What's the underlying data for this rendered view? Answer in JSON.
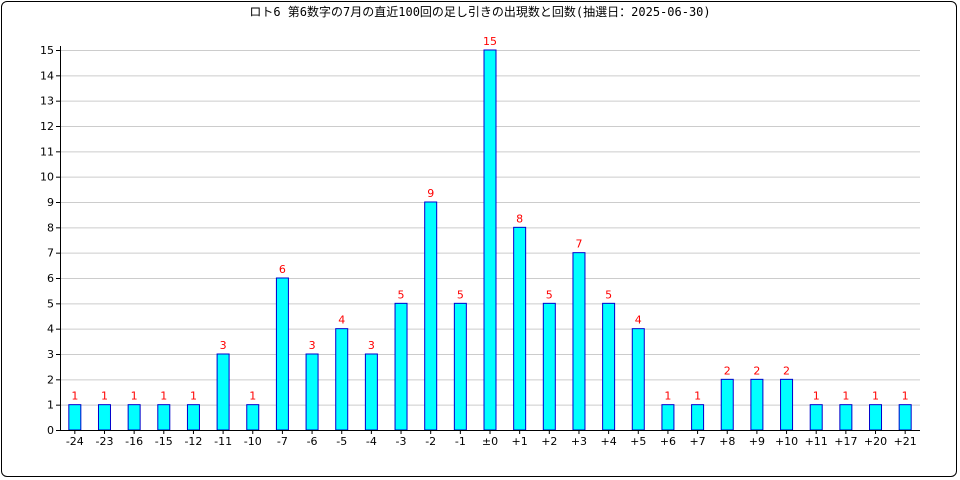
{
  "chart_data": {
    "type": "bar",
    "title": "ロト6 第6数字の7月の直近100回の足し引きの出現数と回数(抽選日：2025-06-30)",
    "xlabel": "",
    "ylabel": "",
    "ylim": [
      0,
      15
    ],
    "yticks": [
      0,
      1,
      2,
      3,
      4,
      5,
      6,
      7,
      8,
      9,
      10,
      11,
      12,
      13,
      14,
      15
    ],
    "grid": true,
    "categories": [
      "-24",
      "-23",
      "-16",
      "-15",
      "-12",
      "-11",
      "-10",
      "-7",
      "-6",
      "-5",
      "-4",
      "-3",
      "-2",
      "-1",
      "±0",
      "+1",
      "+2",
      "+3",
      "+4",
      "+5",
      "+6",
      "+7",
      "+8",
      "+9",
      "+10",
      "+11",
      "+17",
      "+20",
      "+21"
    ],
    "values": [
      1,
      1,
      1,
      1,
      1,
      3,
      1,
      6,
      3,
      4,
      3,
      5,
      9,
      5,
      15,
      8,
      5,
      7,
      5,
      4,
      1,
      1,
      2,
      2,
      2,
      1,
      1,
      1,
      1
    ],
    "colors": {
      "bar_fill": "#00ffff",
      "bar_stroke": "#0000cc",
      "value_label": "#ff0000",
      "grid": "#cccccc"
    }
  }
}
